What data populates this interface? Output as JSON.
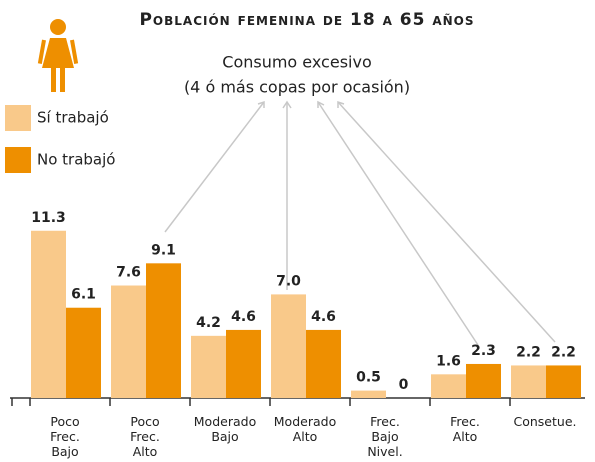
{
  "chart_data": {
    "type": "bar",
    "title": "Población femenina de 18 a 65 años",
    "annotation": [
      "Consumo excesivo",
      "(4 ó más copas por ocasión)"
    ],
    "categories": [
      "Poco Frec. Bajo",
      "Poco Frec. Alto",
      "Moderado Bajo",
      "Moderado Alto",
      "Frec. Bajo Nivel.",
      "Frec. Alto",
      "Consetue."
    ],
    "series": [
      {
        "name": "Sí trabajó",
        "color": "#f9c98a",
        "values": [
          11.3,
          7.6,
          4.2,
          7.0,
          0.5,
          1.6,
          2.2
        ],
        "value_labels": [
          "11.3",
          "7.6",
          "4.2",
          "7.0",
          "0.5",
          "1.6",
          "2.2"
        ]
      },
      {
        "name": "No trabajó",
        "color": "#ee8f00",
        "values": [
          6.1,
          9.1,
          4.6,
          4.6,
          0,
          2.3,
          2.2
        ],
        "value_labels": [
          "6.1",
          "9.1",
          "4.6",
          "4.6",
          "0",
          "2.3",
          "2.2"
        ]
      }
    ]
  }
}
